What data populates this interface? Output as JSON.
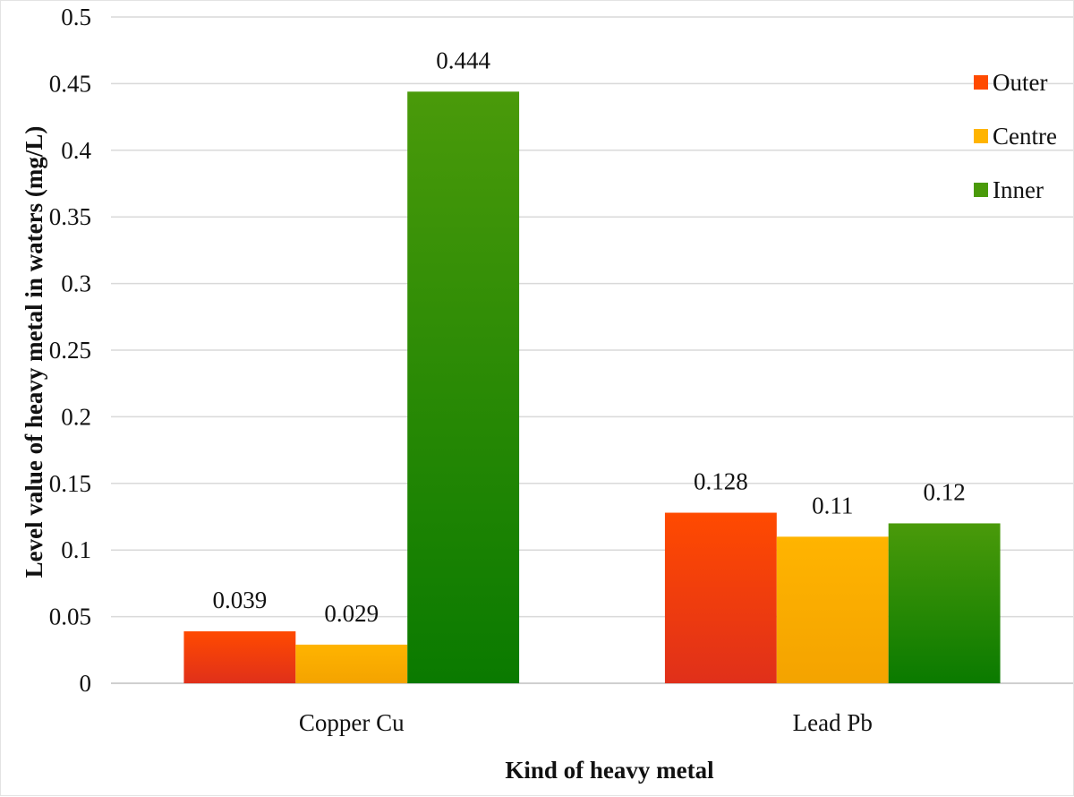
{
  "chart_data": {
    "type": "bar",
    "categories": [
      "Copper Cu",
      "Lead Pb"
    ],
    "series": [
      {
        "name": "Outer",
        "values": [
          0.039,
          0.128
        ],
        "color_top": "#ff4a00",
        "color_bottom": "#e0301a"
      },
      {
        "name": "Centre",
        "values": [
          0.029,
          0.11
        ],
        "color_top": "#ffb400",
        "color_bottom": "#f4a300"
      },
      {
        "name": "Inner",
        "values": [
          0.444,
          0.12
        ],
        "color_top": "#4a9a0a",
        "color_bottom": "#0a7a00"
      }
    ],
    "data_labels": [
      [
        "0.039",
        "0.128"
      ],
      [
        "0.029",
        "0.11"
      ],
      [
        "0.444",
        "0.12"
      ]
    ],
    "xlabel": "Kind of heavy metal",
    "ylabel": "Level value of heavy metal in waters (mg/L)",
    "ylim": [
      0,
      0.5
    ],
    "yticks": [
      0,
      0.05,
      0.1,
      0.15,
      0.2,
      0.25,
      0.3,
      0.35,
      0.4,
      0.45,
      0.5
    ],
    "ytick_labels": [
      "0",
      "0.05",
      "0.1",
      "0.15",
      "0.2",
      "0.25",
      "0.3",
      "0.35",
      "0.4",
      "0.45",
      "0.5"
    ],
    "grid": true,
    "legend_position": "top-right"
  }
}
